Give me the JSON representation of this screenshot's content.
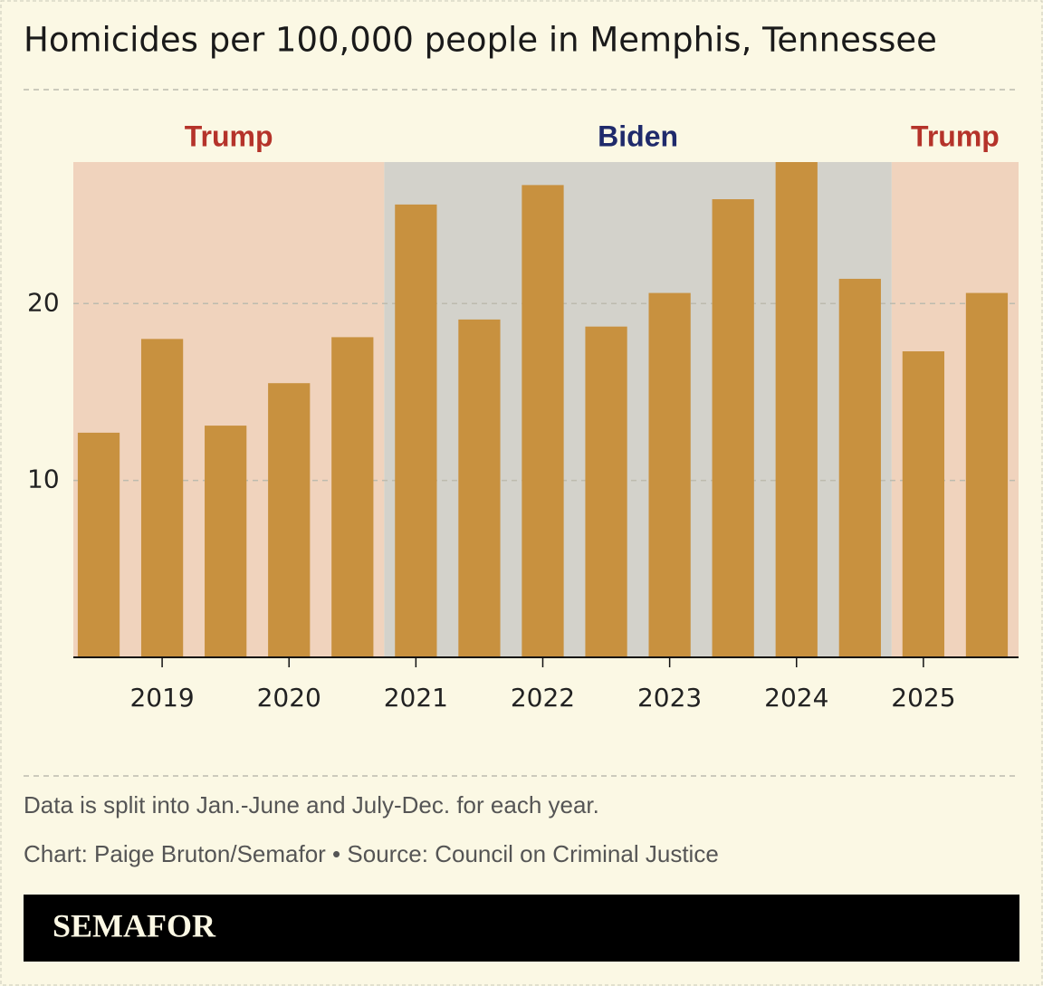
{
  "chart_data": {
    "type": "bar",
    "title": "Homicides per 100,000 people in Memphis, Tennessee",
    "x": [
      2018.5,
      2019,
      2019.5,
      2020,
      2020.5,
      2021,
      2021.5,
      2022,
      2022.5,
      2023,
      2023.5,
      2024,
      2024.5,
      2025,
      2025.5
    ],
    "values": [
      12.7,
      18.0,
      13.1,
      15.5,
      18.1,
      25.6,
      19.1,
      26.7,
      18.7,
      20.6,
      25.9,
      28.0,
      21.4,
      17.3,
      20.6
    ],
    "color": "#c8913f",
    "xlim": [
      2018.3,
      2025.75
    ],
    "xticks": [
      2019,
      2020,
      2021,
      2022,
      2023,
      2024,
      2025
    ],
    "ylim": [
      0,
      28
    ],
    "yticks": [
      10,
      20
    ],
    "grid": true,
    "periods": [
      {
        "label": "Trump",
        "start": 2018.3,
        "end": 2020.75,
        "color": "#f0d3bd",
        "label_color": "#b5332a"
      },
      {
        "label": "Biden",
        "start": 2020.75,
        "end": 2024.75,
        "color": "#d3d2cb",
        "label_color": "#1f2a6b"
      },
      {
        "label": "Trump",
        "start": 2024.75,
        "end": 2025.75,
        "color": "#f0d3bd",
        "label_color": "#b5332a"
      }
    ],
    "notes": [
      "Data is split into Jan.-June and July-Dec. for each year.",
      "Chart: Paige Bruton/Semafor • Source: Council on Criminal Justice"
    ],
    "brand": "SEMAFOR"
  }
}
